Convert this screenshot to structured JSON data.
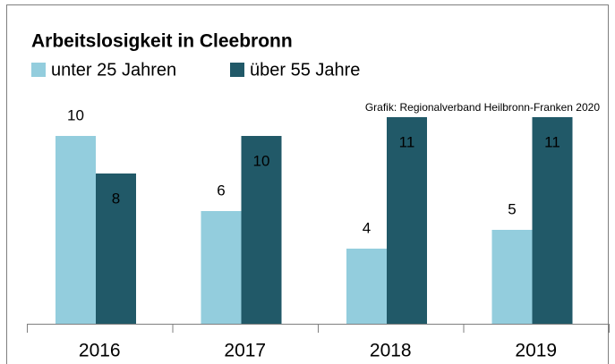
{
  "chart_data": {
    "type": "bar",
    "title": "Arbeitslosigkeit in Cleebronn",
    "annotation": "Grafik: Regionalverband Heilbronn-Franken 2020",
    "categories": [
      "2016",
      "2017",
      "2018",
      "2019"
    ],
    "series": [
      {
        "name": "unter 25 Jahren",
        "color": "#93cddd",
        "values": [
          10,
          6,
          4,
          5
        ]
      },
      {
        "name": "über 55 Jahre",
        "color": "#215968",
        "values": [
          8,
          10,
          11,
          11
        ]
      }
    ],
    "ylim": [
      0,
      11
    ],
    "data_labels": true
  }
}
